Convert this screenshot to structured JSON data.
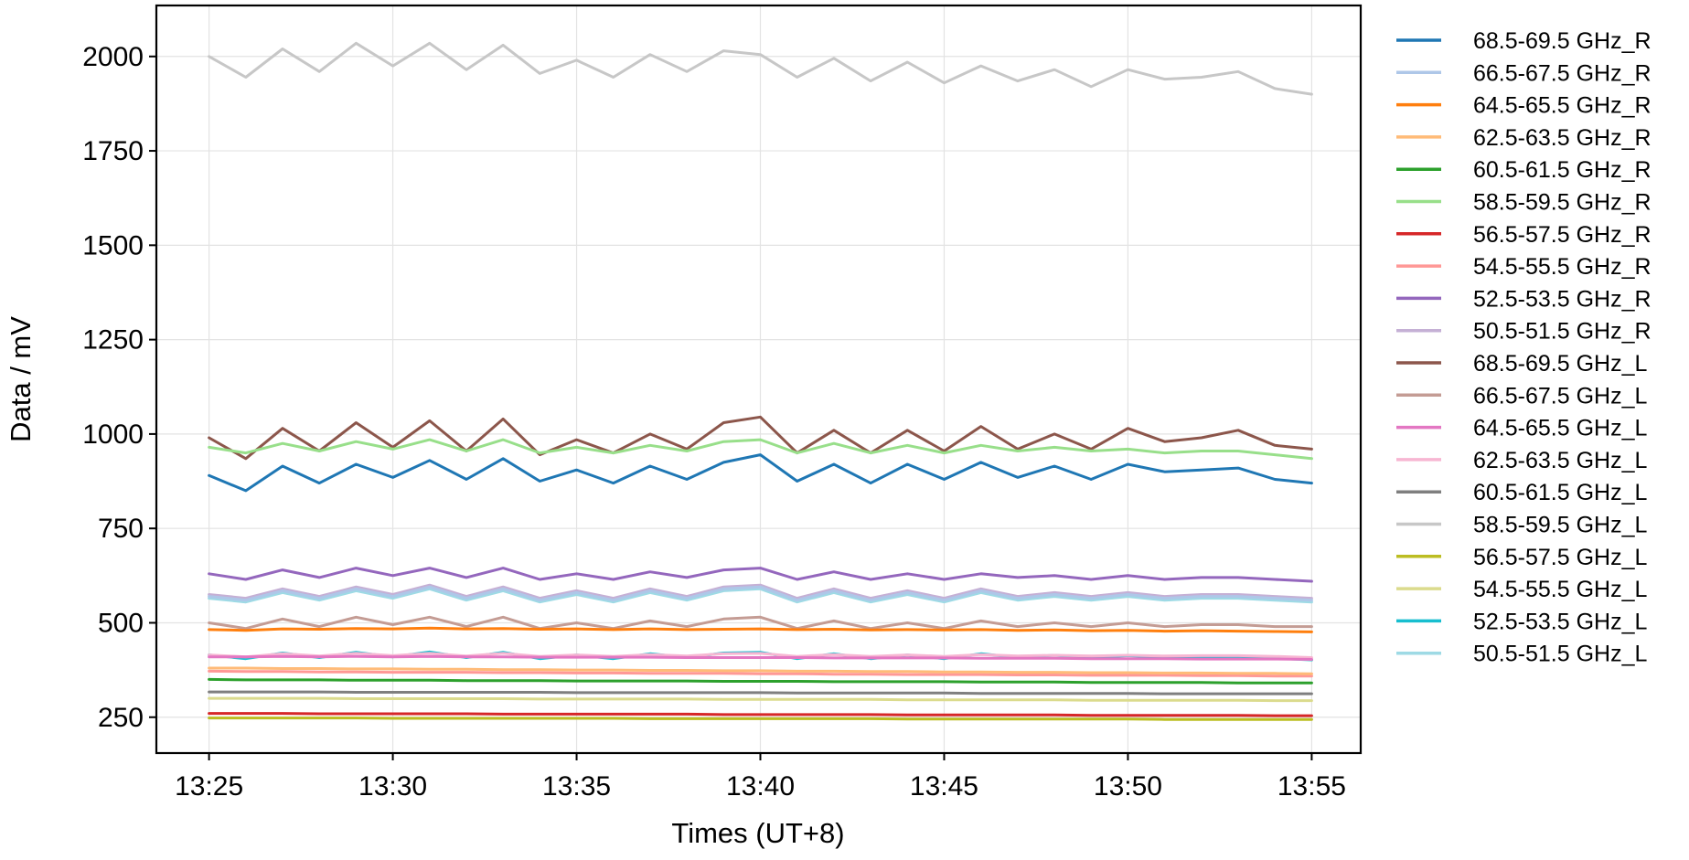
{
  "chart_data": {
    "type": "line",
    "xlabel": "Times (UT+8)",
    "ylabel": "Data / mV",
    "x_ticks": [
      "13:25",
      "13:30",
      "13:35",
      "13:40",
      "13:45",
      "13:50",
      "13:55"
    ],
    "y_ticks": [
      250,
      500,
      750,
      1000,
      1250,
      1500,
      1750,
      2000
    ],
    "xlim": [
      "13:23:34",
      "13:56:20"
    ],
    "ylim": [
      155,
      2135
    ],
    "grid": true,
    "legend_position": "outside-right",
    "x": [
      "13:25",
      "13:26",
      "13:27",
      "13:28",
      "13:29",
      "13:30",
      "13:31",
      "13:32",
      "13:33",
      "13:34",
      "13:35",
      "13:36",
      "13:37",
      "13:38",
      "13:39",
      "13:40",
      "13:41",
      "13:42",
      "13:43",
      "13:44",
      "13:45",
      "13:46",
      "13:47",
      "13:48",
      "13:49",
      "13:50",
      "13:51",
      "13:52",
      "13:53",
      "13:54",
      "13:55"
    ],
    "series": [
      {
        "name": "68.5-69.5 GHz_R",
        "color": "#1f77b4",
        "values": [
          890,
          850,
          915,
          870,
          920,
          885,
          930,
          880,
          935,
          875,
          905,
          870,
          915,
          880,
          925,
          945,
          875,
          920,
          870,
          920,
          880,
          925,
          885,
          915,
          880,
          920,
          900,
          905,
          910,
          880,
          870
        ]
      },
      {
        "name": "66.5-67.5 GHz_R",
        "color": "#aec7e8",
        "values": [
          570,
          560,
          585,
          565,
          590,
          570,
          595,
          565,
          590,
          560,
          580,
          560,
          585,
          565,
          590,
          595,
          560,
          585,
          560,
          580,
          560,
          585,
          565,
          575,
          565,
          575,
          565,
          570,
          570,
          565,
          560
        ]
      },
      {
        "name": "64.5-65.5 GHz_R",
        "color": "#ff7f0e",
        "values": [
          482,
          480,
          484,
          483,
          485,
          484,
          486,
          484,
          485,
          483,
          484,
          482,
          484,
          482,
          483,
          484,
          482,
          483,
          481,
          482,
          481,
          482,
          480,
          481,
          479,
          480,
          478,
          479,
          478,
          477,
          476
        ]
      },
      {
        "name": "62.5-63.5 GHz_R",
        "color": "#ffbb78",
        "values": [
          380,
          380,
          379,
          379,
          378,
          378,
          377,
          377,
          376,
          376,
          375,
          375,
          374,
          374,
          373,
          373,
          372,
          372,
          371,
          371,
          370,
          370,
          369,
          369,
          368,
          368,
          367,
          367,
          366,
          366,
          365
        ]
      },
      {
        "name": "60.5-61.5 GHz_R",
        "color": "#2ca02c",
        "values": [
          350,
          349,
          349,
          349,
          348,
          348,
          348,
          347,
          347,
          347,
          346,
          346,
          346,
          346,
          345,
          345,
          345,
          344,
          344,
          344,
          344,
          343,
          343,
          343,
          342,
          342,
          342,
          342,
          341,
          341,
          341
        ]
      },
      {
        "name": "58.5-59.5 GHz_R",
        "color": "#98df8a",
        "values": [
          965,
          950,
          975,
          955,
          980,
          960,
          985,
          955,
          985,
          950,
          965,
          950,
          970,
          955,
          980,
          985,
          950,
          975,
          950,
          970,
          950,
          970,
          955,
          965,
          955,
          960,
          950,
          955,
          955,
          945,
          935
        ]
      },
      {
        "name": "56.5-57.5 GHz_R",
        "color": "#d62728",
        "values": [
          260,
          260,
          260,
          259,
          259,
          259,
          259,
          259,
          258,
          258,
          258,
          258,
          258,
          258,
          257,
          257,
          257,
          257,
          257,
          256,
          256,
          256,
          256,
          256,
          255,
          255,
          255,
          255,
          255,
          254,
          254
        ]
      },
      {
        "name": "54.5-55.5 GHz_R",
        "color": "#ff9896",
        "values": [
          372,
          371,
          371,
          370,
          370,
          369,
          369,
          369,
          368,
          368,
          367,
          367,
          366,
          366,
          366,
          365,
          365,
          364,
          364,
          363,
          363,
          363,
          362,
          362,
          361,
          361,
          361,
          360,
          360,
          359,
          359
        ]
      },
      {
        "name": "52.5-53.5 GHz_R",
        "color": "#9467bd",
        "values": [
          630,
          615,
          640,
          620,
          645,
          625,
          645,
          620,
          645,
          615,
          630,
          615,
          635,
          620,
          640,
          645,
          615,
          635,
          615,
          630,
          615,
          630,
          620,
          625,
          615,
          625,
          615,
          620,
          620,
          615,
          610
        ]
      },
      {
        "name": "50.5-51.5 GHz_R",
        "color": "#c5b0d5",
        "values": [
          575,
          565,
          590,
          570,
          595,
          575,
          600,
          570,
          595,
          565,
          585,
          565,
          590,
          570,
          595,
          600,
          565,
          590,
          565,
          585,
          565,
          590,
          570,
          580,
          570,
          580,
          570,
          575,
          575,
          570,
          565
        ]
      },
      {
        "name": "68.5-69.5 GHz_L",
        "color": "#8c564b",
        "values": [
          990,
          935,
          1015,
          955,
          1030,
          965,
          1035,
          955,
          1040,
          945,
          985,
          950,
          1000,
          960,
          1030,
          1045,
          950,
          1010,
          950,
          1010,
          955,
          1020,
          960,
          1000,
          960,
          1015,
          980,
          990,
          1010,
          970,
          960
        ]
      },
      {
        "name": "66.5-67.5 GHz_L",
        "color": "#c49c94",
        "values": [
          500,
          485,
          510,
          490,
          515,
          495,
          515,
          490,
          515,
          485,
          500,
          485,
          505,
          490,
          510,
          515,
          485,
          505,
          485,
          500,
          485,
          505,
          490,
          500,
          490,
          500,
          490,
          495,
          495,
          490,
          490
        ]
      },
      {
        "name": "64.5-65.5 GHz_L",
        "color": "#e377c2",
        "values": [
          410,
          410,
          411,
          410,
          411,
          410,
          411,
          410,
          410,
          409,
          409,
          409,
          409,
          408,
          408,
          408,
          408,
          407,
          407,
          407,
          407,
          406,
          406,
          406,
          405,
          405,
          405,
          404,
          404,
          404,
          403
        ]
      },
      {
        "name": "62.5-63.5 GHz_L",
        "color": "#f7b6d2",
        "values": [
          415,
          410,
          418,
          412,
          419,
          413,
          419,
          412,
          419,
          411,
          415,
          411,
          416,
          412,
          418,
          419,
          411,
          416,
          411,
          415,
          411,
          416,
          412,
          414,
          412,
          414,
          412,
          413,
          413,
          411,
          408
        ]
      },
      {
        "name": "60.5-61.5 GHz_L",
        "color": "#7f7f7f",
        "values": [
          317,
          317,
          317,
          317,
          316,
          316,
          316,
          316,
          316,
          316,
          315,
          315,
          315,
          315,
          315,
          315,
          314,
          314,
          314,
          314,
          314,
          313,
          313,
          313,
          313,
          313,
          312,
          312,
          312,
          312,
          312
        ]
      },
      {
        "name": "58.5-59.5 GHz_L",
        "color": "#c7c7c7",
        "values": [
          2000,
          1945,
          2020,
          1960,
          2035,
          1975,
          2035,
          1965,
          2030,
          1955,
          1990,
          1945,
          2005,
          1960,
          2015,
          2005,
          1945,
          1995,
          1935,
          1985,
          1930,
          1975,
          1935,
          1965,
          1920,
          1965,
          1940,
          1945,
          1960,
          1915,
          1900
        ]
      },
      {
        "name": "56.5-57.5 GHz_L",
        "color": "#bcbd22",
        "values": [
          248,
          248,
          248,
          248,
          248,
          247,
          247,
          247,
          247,
          247,
          247,
          247,
          246,
          246,
          246,
          246,
          246,
          246,
          246,
          245,
          245,
          245,
          245,
          245,
          245,
          245,
          244,
          244,
          244,
          244,
          244
        ]
      },
      {
        "name": "54.5-55.5 GHz_L",
        "color": "#dbdb8d",
        "values": [
          300,
          300,
          300,
          300,
          299,
          299,
          299,
          299,
          299,
          298,
          298,
          298,
          298,
          298,
          297,
          297,
          297,
          297,
          297,
          296,
          296,
          296,
          296,
          296,
          295,
          295,
          295,
          295,
          295,
          294,
          294
        ]
      },
      {
        "name": "52.5-53.5 GHz_L",
        "color": "#17becf",
        "values": [
          415,
          405,
          420,
          408,
          422,
          410,
          423,
          408,
          422,
          405,
          415,
          405,
          418,
          408,
          420,
          422,
          405,
          418,
          405,
          415,
          405,
          418,
          408,
          414,
          407,
          413,
          408,
          410,
          411,
          406,
          402
        ]
      },
      {
        "name": "50.5-51.5 GHz_L",
        "color": "#9edae5",
        "values": [
          565,
          555,
          580,
          560,
          585,
          565,
          590,
          560,
          585,
          555,
          575,
          555,
          580,
          560,
          585,
          590,
          555,
          580,
          555,
          575,
          555,
          580,
          560,
          570,
          560,
          570,
          560,
          565,
          565,
          560,
          555
        ]
      }
    ]
  }
}
